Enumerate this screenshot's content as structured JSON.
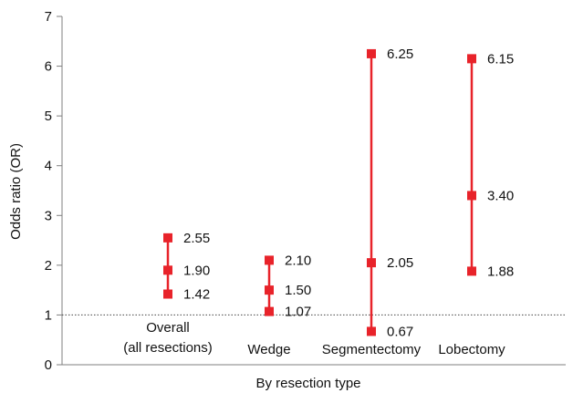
{
  "chart_data": {
    "type": "scatter",
    "title": "",
    "xlabel": "By resection type",
    "ylabel": "Odds ratio (OR)",
    "ylim": [
      0,
      7
    ],
    "yticks": [
      0,
      1,
      2,
      3,
      4,
      5,
      6,
      7
    ],
    "grid": false,
    "reference_line": {
      "y": 1,
      "style": "dotted"
    },
    "categories": [
      {
        "label_lines": [
          "Overall",
          "(all resections)"
        ],
        "lower": 1.42,
        "estimate": 1.9,
        "upper": 2.55,
        "lower_label": "1.42",
        "estimate_label": "1.90",
        "upper_label": "2.55"
      },
      {
        "label_lines": [
          "Wedge"
        ],
        "lower": 1.07,
        "estimate": 1.5,
        "upper": 2.1,
        "lower_label": "1.07",
        "estimate_label": "1.50",
        "upper_label": "2.10"
      },
      {
        "label_lines": [
          "Segmentectomy"
        ],
        "lower": 0.67,
        "estimate": 2.05,
        "upper": 6.25,
        "lower_label": "0.67",
        "estimate_label": "2.05",
        "upper_label": "6.25"
      },
      {
        "label_lines": [
          "Lobectomy"
        ],
        "lower": 1.88,
        "estimate": 3.4,
        "upper": 6.15,
        "lower_label": "1.88",
        "estimate_label": "3.40",
        "upper_label": "6.15"
      }
    ],
    "colors": {
      "series": "#e8232a",
      "axis": "#7f7f7f",
      "reference": "#444444",
      "text": "#111111"
    }
  }
}
